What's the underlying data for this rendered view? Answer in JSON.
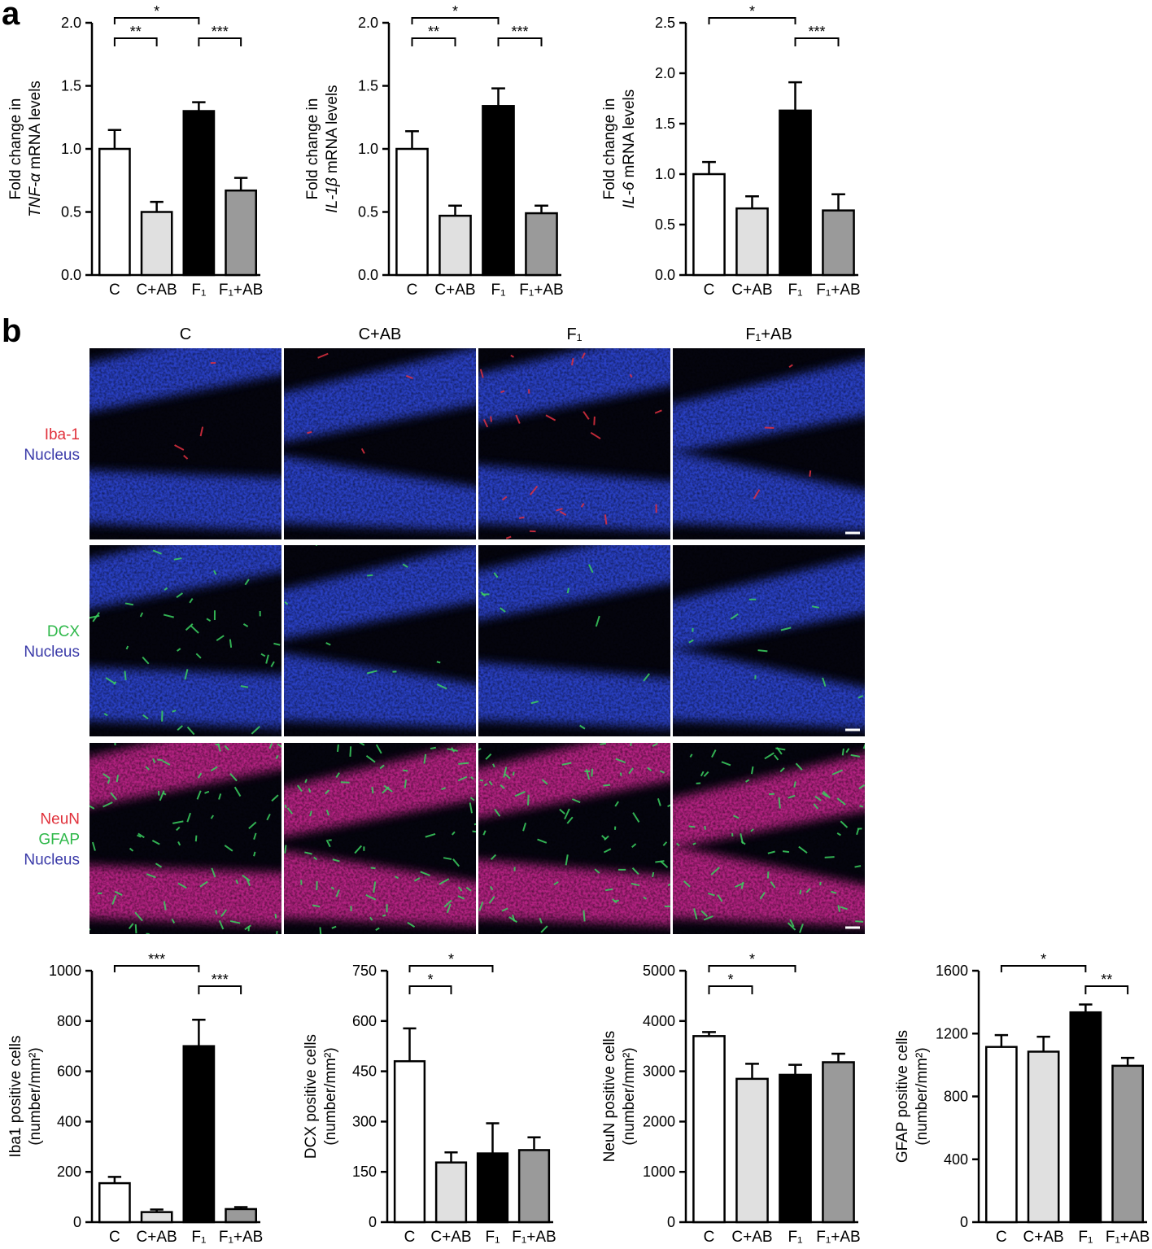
{
  "panel_labels": [
    "a",
    "b"
  ],
  "image_panel": {
    "columns": [
      "C",
      "C+AB",
      "F₁",
      "F₁+AB"
    ],
    "rows": [
      {
        "labels": [
          "Iba-1",
          "Nucleus"
        ],
        "colors": [
          "#e0303a",
          "#3a3aa8"
        ]
      },
      {
        "labels": [
          "DCX",
          "Nucleus"
        ],
        "colors": [
          "#2fb84a",
          "#3a3aa8"
        ]
      },
      {
        "labels": [
          "NeuN",
          "GFAP",
          "Nucleus"
        ],
        "colors": [
          "#e0303a",
          "#2fb84a",
          "#3a3aa8"
        ]
      }
    ]
  },
  "chart_data": [
    {
      "type": "bar",
      "ylabel": {
        "line1": "Fold change in",
        "line2_italic": "TNF-α",
        "line2": "mRNA levels"
      },
      "categories": [
        "C",
        "C+AB",
        "F₁",
        "F₁+AB"
      ],
      "colors": [
        "#ffffff",
        "#e0e0e0",
        "#000000",
        "#9a9a9a"
      ],
      "values": [
        1.0,
        0.5,
        1.3,
        0.67
      ],
      "errors": [
        0.15,
        0.08,
        0.07,
        0.1
      ],
      "ylim": [
        0,
        2
      ],
      "yticks": [
        {
          "value": 0,
          "label": "0.0"
        },
        0.5,
        {
          "value": 1,
          "label": "1.0"
        },
        1.5,
        {
          "value": 2,
          "label": "2.0"
        }
      ],
      "significance": [
        {
          "from": 0,
          "to": 2,
          "label": "*"
        },
        {
          "from": 0,
          "to": 1,
          "label": "**"
        },
        {
          "from": 2,
          "to": 3,
          "label": "***"
        }
      ]
    },
    {
      "type": "bar",
      "ylabel": {
        "line1": "Fold change in",
        "line2_italic": "IL-1β",
        "line2": "mRNA levels"
      },
      "categories": [
        "C",
        "C+AB",
        "F₁",
        "F₁+AB"
      ],
      "colors": [
        "#ffffff",
        "#e0e0e0",
        "#000000",
        "#9a9a9a"
      ],
      "values": [
        1.0,
        0.47,
        1.34,
        0.49
      ],
      "errors": [
        0.14,
        0.08,
        0.14,
        0.06
      ],
      "ylim": [
        0,
        2
      ],
      "yticks": [
        {
          "value": 0,
          "label": "0.0"
        },
        0.5,
        {
          "value": 1,
          "label": "1.0"
        },
        1.5,
        {
          "value": 2,
          "label": "2.0"
        }
      ],
      "significance": [
        {
          "from": 0,
          "to": 2,
          "label": "*"
        },
        {
          "from": 0,
          "to": 1,
          "label": "**"
        },
        {
          "from": 2,
          "to": 3,
          "label": "***"
        }
      ]
    },
    {
      "type": "bar",
      "ylabel": {
        "line1": "Fold change in",
        "line2_italic": "IL-6",
        "line2": "mRNA levels"
      },
      "categories": [
        "C",
        "C+AB",
        "F₁",
        "F₁+AB"
      ],
      "colors": [
        "#ffffff",
        "#e0e0e0",
        "#000000",
        "#9a9a9a"
      ],
      "values": [
        1.0,
        0.66,
        1.63,
        0.64
      ],
      "errors": [
        0.12,
        0.12,
        0.28,
        0.16
      ],
      "ylim": [
        0,
        2.5
      ],
      "yticks": [
        {
          "value": 0,
          "label": "0.0"
        },
        0.5,
        {
          "value": 1,
          "label": "1.0"
        },
        1.5,
        {
          "value": 2,
          "label": "2.0"
        },
        2.5
      ],
      "significance": [
        {
          "from": 0,
          "to": 2,
          "label": "*"
        },
        {
          "from": 2,
          "to": 3,
          "label": "***"
        }
      ]
    },
    {
      "type": "bar",
      "ylabel": {
        "line1": "Iba1 positive cells",
        "line2": "(number/mm²)"
      },
      "categories": [
        "C",
        "C+AB",
        "F₁",
        "F₁+AB"
      ],
      "colors": [
        "#ffffff",
        "#e0e0e0",
        "#000000",
        "#9a9a9a"
      ],
      "values": [
        155,
        40,
        700,
        52
      ],
      "errors": [
        25,
        10,
        105,
        8
      ],
      "ylim": [
        0,
        1000
      ],
      "yticks": [
        0,
        200,
        400,
        600,
        800,
        1000
      ],
      "significance": [
        {
          "from": 0,
          "to": 2,
          "label": "***"
        },
        {
          "from": 2,
          "to": 3,
          "label": "***"
        }
      ]
    },
    {
      "type": "bar",
      "ylabel": {
        "line1": "DCX positive cells",
        "line2": "(number/mm²)"
      },
      "categories": [
        "C",
        "C+AB",
        "F₁",
        "F₁+AB"
      ],
      "colors": [
        "#ffffff",
        "#e0e0e0",
        "#000000",
        "#9a9a9a"
      ],
      "values": [
        480,
        178,
        205,
        215
      ],
      "errors": [
        98,
        30,
        90,
        38
      ],
      "ylim": [
        0,
        750
      ],
      "yticks": [
        0,
        150,
        300,
        450,
        600,
        750
      ],
      "significance": [
        {
          "from": 0,
          "to": 2,
          "label": "*"
        },
        {
          "from": 0,
          "to": 1,
          "label": "*"
        }
      ]
    },
    {
      "type": "bar",
      "ylabel": {
        "line1": "NeuN positive cells",
        "line2": "(number/mm²)"
      },
      "categories": [
        "C",
        "C+AB",
        "F₁",
        "F₁+AB"
      ],
      "colors": [
        "#ffffff",
        "#e0e0e0",
        "#000000",
        "#9a9a9a"
      ],
      "values": [
        3700,
        2850,
        2930,
        3180
      ],
      "errors": [
        80,
        300,
        200,
        170
      ],
      "ylim": [
        0,
        5000
      ],
      "yticks": [
        0,
        1000,
        2000,
        3000,
        4000,
        5000
      ],
      "significance": [
        {
          "from": 0,
          "to": 2,
          "label": "*"
        },
        {
          "from": 0,
          "to": 1,
          "label": "*"
        }
      ]
    },
    {
      "type": "bar",
      "ylabel": {
        "line1": "GFAP positive cells",
        "line2": "(number/mm²)"
      },
      "categories": [
        "C",
        "C+AB",
        "F₁",
        "F₁+AB"
      ],
      "colors": [
        "#ffffff",
        "#e0e0e0",
        "#000000",
        "#9a9a9a"
      ],
      "values": [
        1115,
        1085,
        1335,
        995
      ],
      "errors": [
        75,
        95,
        50,
        50
      ],
      "ylim": [
        0,
        1600
      ],
      "yticks": [
        0,
        400,
        800,
        1200,
        1600
      ],
      "significance": [
        {
          "from": 0,
          "to": 2,
          "label": "*"
        },
        {
          "from": 2,
          "to": 3,
          "label": "**"
        }
      ]
    }
  ]
}
